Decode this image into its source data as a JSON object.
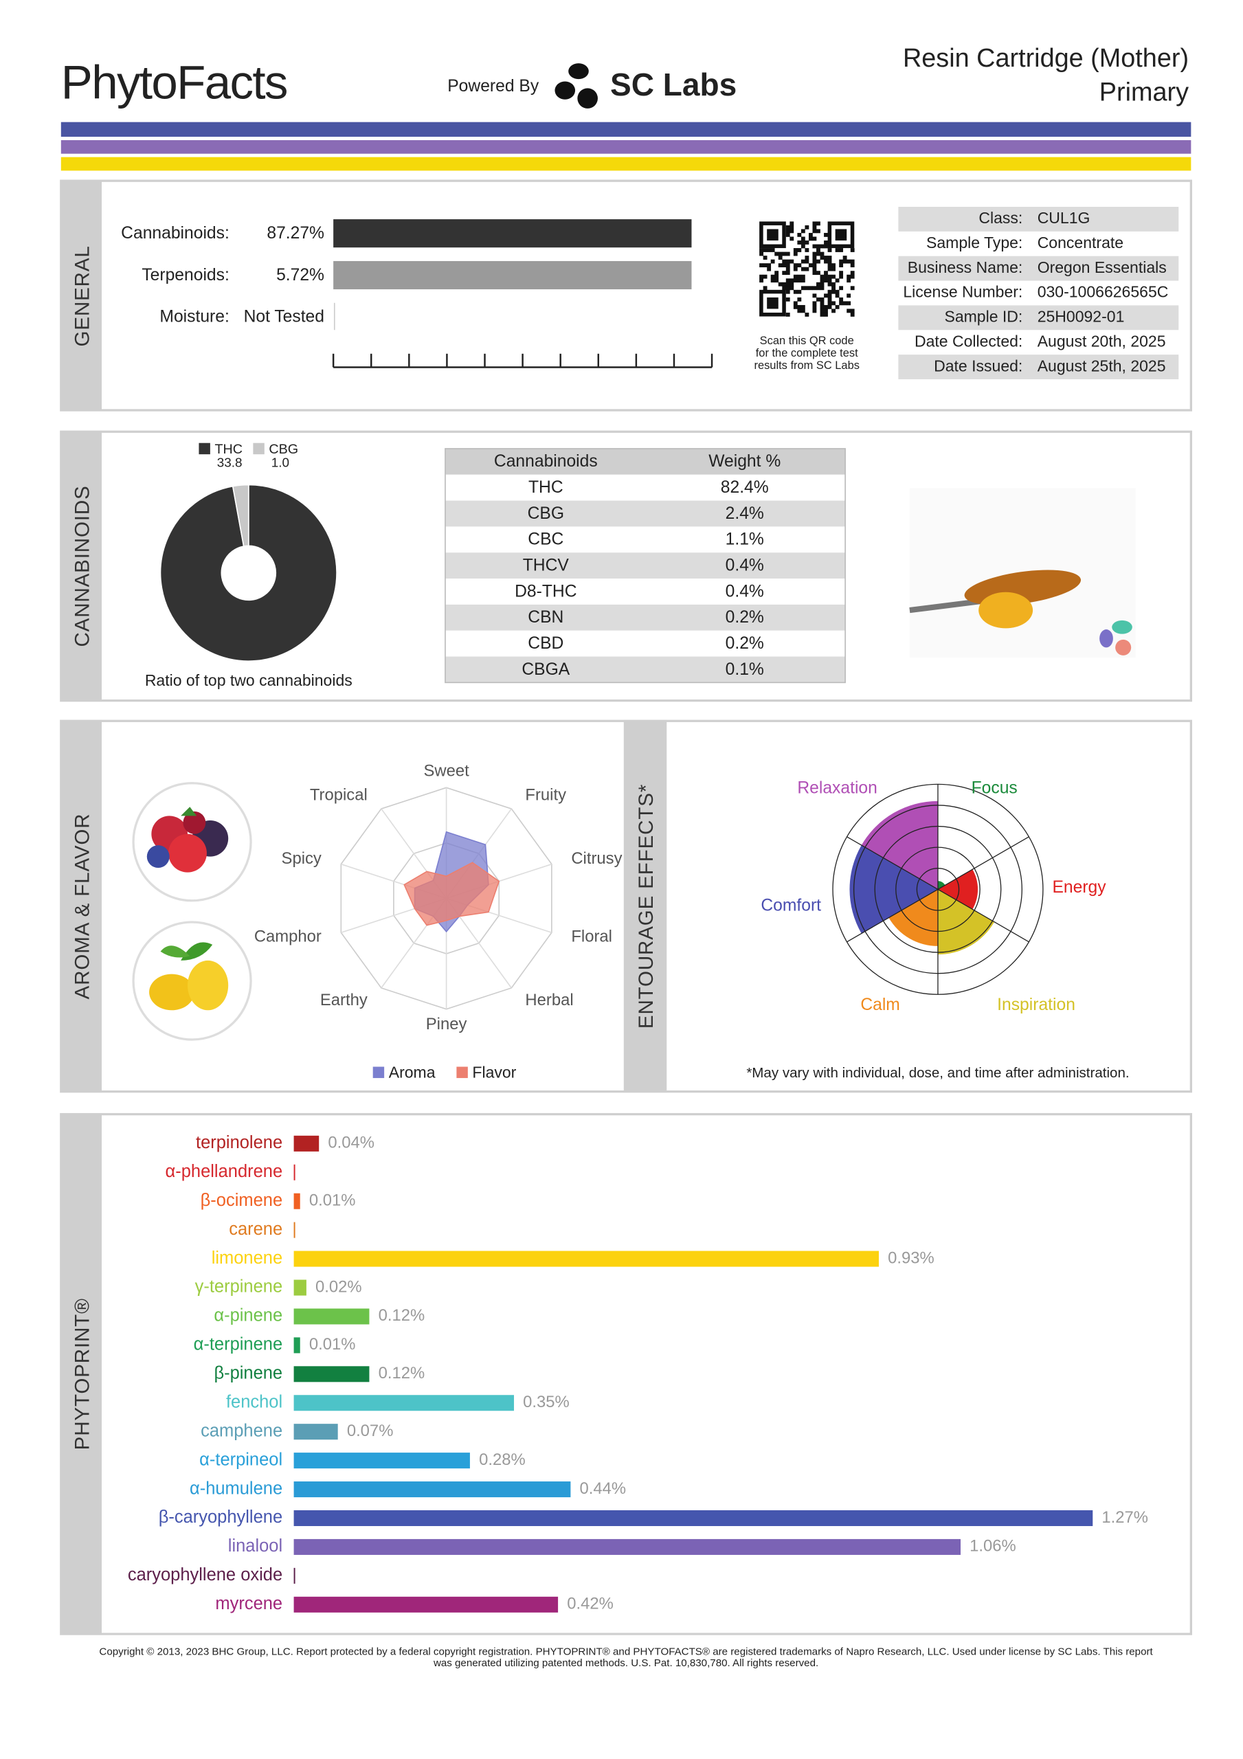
{
  "header": {
    "brand": "PhytoFacts",
    "powered_by": "Powered By",
    "lab": "SC Labs",
    "product": "Resin Cartridge (Mother)",
    "sample": "Primary"
  },
  "sections": {
    "general": "GENERAL",
    "cannabinoids": "CANNABINOIDS",
    "aroma": "AROMA & FLAVOR",
    "effects": "ENTOURAGE EFFECTS*",
    "phytoprint": "PHYTOPRINT®"
  },
  "general": {
    "rows": [
      {
        "label": "Cannabinoids:",
        "value": "87.27%"
      },
      {
        "label": "Terpenoids:",
        "value": "5.72%"
      },
      {
        "label": "Moisture:",
        "value": "Not Tested"
      }
    ],
    "qr_note": [
      "Scan this QR code",
      "for the complete test",
      "results from SC Labs"
    ],
    "fields": [
      {
        "label": "Class:",
        "value": "CUL1G"
      },
      {
        "label": "Sample Type:",
        "value": "Concentrate"
      },
      {
        "label": "Business Name:",
        "value": "Oregon Essentials"
      },
      {
        "label": "License Number:",
        "value": "030-1006626565C"
      },
      {
        "label": "Sample ID:",
        "value": "25H0092-01"
      },
      {
        "label": "Date Collected:",
        "value": "August 20th, 2025"
      },
      {
        "label": "Date Issued:",
        "value": "August 25th, 2025"
      }
    ]
  },
  "cannabinoid_table": {
    "header": [
      "Cannabinoids",
      "Weight %"
    ],
    "rows": [
      [
        "THC",
        "82.4%"
      ],
      [
        "CBG",
        "2.4%"
      ],
      [
        "CBC",
        "1.1%"
      ],
      [
        "THCV",
        "0.4%"
      ],
      [
        "D8-THC",
        "0.4%"
      ],
      [
        "CBN",
        "0.2%"
      ],
      [
        "CBD",
        "0.2%"
      ],
      [
        "CBGA",
        "0.1%"
      ]
    ]
  },
  "chart_data": [
    {
      "type": "pie",
      "title": "Ratio of top two cannabinoids",
      "categories": [
        "THC",
        "CBG"
      ],
      "values": [
        33.8,
        1.0
      ],
      "value_labels": [
        "33.8",
        "1.0"
      ],
      "colors": [
        "#333333",
        "#c8c8c8"
      ]
    },
    {
      "type": "radar",
      "categories": [
        "Sweet",
        "Fruity",
        "Citrusy",
        "Floral",
        "Herbal",
        "Piney",
        "Earthy",
        "Camphor",
        "Spicy",
        "Tropical"
      ],
      "ylim": [
        0,
        10
      ],
      "series": [
        {
          "name": "Aroma",
          "color": "#7b7fcf",
          "values": [
            6,
            6,
            4,
            2,
            2,
            3,
            2,
            3,
            3,
            2
          ]
        },
        {
          "name": "Flavor",
          "color": "#ec7f6f",
          "values": [
            2,
            4,
            5,
            4,
            2,
            2,
            3,
            3,
            4,
            3
          ]
        }
      ]
    },
    {
      "type": "rose",
      "categories": [
        "Focus",
        "Energy",
        "Inspiration",
        "Calm",
        "Comfort",
        "Relaxation"
      ],
      "values": [
        0.4,
        1.9,
        3.1,
        2.7,
        4.2,
        4.2
      ],
      "colors": [
        "#1a8a3a",
        "#e02020",
        "#d4c227",
        "#f08a1c",
        "#4a4eb0",
        "#b04fb5"
      ],
      "ylim": [
        0,
        5
      ],
      "note": "*May vary with individual, dose, and time after administration."
    },
    {
      "type": "bar",
      "orientation": "horizontal",
      "categories": [
        "terpinolene",
        "α-phellandrene",
        "β-ocimene",
        "carene",
        "limonene",
        "γ-terpinene",
        "α-pinene",
        "α-terpinene",
        "β-pinene",
        "fenchol",
        "camphene",
        "α-terpineol",
        "α-humulene",
        "β-caryophyllene",
        "linalool",
        "caryophyllene oxide",
        "myrcene"
      ],
      "values": [
        0.04,
        0,
        0.01,
        0,
        0.93,
        0.02,
        0.12,
        0.01,
        0.12,
        0.35,
        0.07,
        0.28,
        0.44,
        1.27,
        1.06,
        0,
        0.42
      ],
      "value_labels": [
        "0.04%",
        null,
        "0.01%",
        null,
        "0.93%",
        "0.02%",
        "0.12%",
        "0.01%",
        "0.12%",
        "0.35%",
        "0.07%",
        "0.28%",
        "0.44%",
        "1.27%",
        "1.06%",
        null,
        "0.42%"
      ],
      "colors": [
        "#b22222",
        "#d6282e",
        "#f06022",
        "#e07b20",
        "#fcd20f",
        "#9ccc40",
        "#6cc24a",
        "#1f9e55",
        "#128040",
        "#4dc3c8",
        "#5b9eb5",
        "#29a0d9",
        "#2a9bd6",
        "#4556ae",
        "#7b63b5",
        "#5c1f4a",
        "#a0267a"
      ],
      "xlim": [
        0,
        1.4
      ]
    }
  ],
  "footer": [
    "Copyright © 2013, 2023 BHC Group, LLC. Report protected by a federal copyright registration. PHYTOPRINT® and PHYTOFACTS® are registered trademarks of Napro Research, LLC. Used under license by SC Labs. This report",
    "was generated utilizing patented methods. U.S. Pat. 10,830,780. All rights reserved."
  ]
}
